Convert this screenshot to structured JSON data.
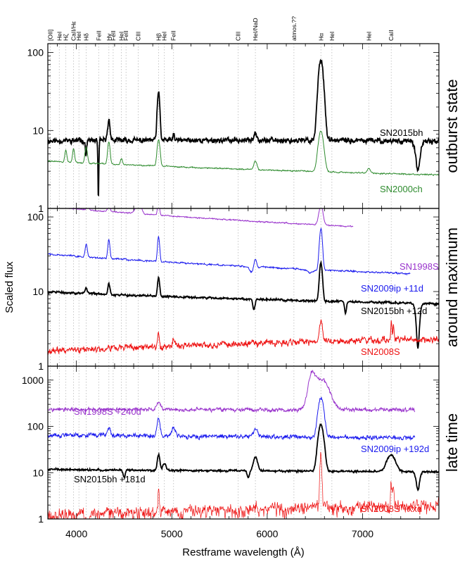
{
  "chart_data": {
    "type": "line",
    "xlabel": "Restframe wavelength (Å)",
    "ylabel": "Scaled flux",
    "xlim": [
      3700,
      7800
    ],
    "x_ticks": [
      4000,
      5000,
      6000,
      7000
    ],
    "x_tick_labels": [
      "4000",
      "5000",
      "6000",
      "7000"
    ],
    "line_markers": [
      {
        "label": "[OII]",
        "x": 3727
      },
      {
        "label": "HeI",
        "x": 3820
      },
      {
        "label": "Hζ",
        "x": 3889
      },
      {
        "label": "CaII/Hε",
        "x": 3970
      },
      {
        "label": "HeI",
        "x": 4026
      },
      {
        "label": "Hδ",
        "x": 4102
      },
      {
        "label": "FeII",
        "x": 4233
      },
      {
        "label": "Hγ",
        "x": 4340
      },
      {
        "label": "FeII",
        "x": 4385
      },
      {
        "label": "HeI",
        "x": 4471
      },
      {
        "label": "FeII",
        "x": 4520
      },
      {
        "label": "CIII",
        "x": 4647
      },
      {
        "label": "Hβ",
        "x": 4861
      },
      {
        "label": "HeI",
        "x": 4922
      },
      {
        "label": "FeII",
        "x": 5018
      },
      {
        "label": "CIII",
        "x": 5696
      },
      {
        "label": "HeI/NaD",
        "x": 5876
      },
      {
        "label": "atmos.??",
        "x": 6280
      },
      {
        "label": "Hα",
        "x": 6563
      },
      {
        "label": "HeI",
        "x": 6678
      },
      {
        "label": "HeI",
        "x": 7065
      },
      {
        "label": "CaII",
        "x": 7300
      }
    ],
    "panels": [
      {
        "title": "outburst state",
        "ylim": [
          1,
          130
        ],
        "yscale": "log",
        "y_ticks": [
          1,
          10,
          100
        ],
        "y_tick_labels": [
          "1",
          "10",
          "100"
        ],
        "series": [
          {
            "name": "SN2015bh",
            "color": "#000000",
            "width": 1.8,
            "scale": 7.5,
            "slope": 0.25,
            "tilt": -0.1,
            "noise": 0.1,
            "seed": 11,
            "lines": [
              [
                4861,
                3.0,
                12
              ],
              [
                6563,
                10.0,
                24
              ],
              [
                4340,
                0.8,
                12
              ],
              [
                5876,
                0.3,
                15
              ],
              [
                5018,
                0.2,
                8
              ]
            ],
            "absorptions": [
              [
                4230,
                0.85,
                6
              ],
              [
                7580,
                0.6,
                25
              ],
              [
                4100,
                0.4,
                6
              ]
            ],
            "label_text": "SN2015bh",
            "label_color": "#000000"
          },
          {
            "name": "SN2000ch",
            "color": "#2e8b2e",
            "width": 1.0,
            "scale": 3.2,
            "slope": -0.55,
            "tilt": 0.0,
            "noise": 0.025,
            "seed": 22,
            "lines": [
              [
                6563,
                2.3,
                26
              ],
              [
                4861,
                1.2,
                14
              ],
              [
                4340,
                0.9,
                12
              ],
              [
                4102,
                0.6,
                12
              ],
              [
                3970,
                0.5,
                10
              ],
              [
                3889,
                0.4,
                10
              ],
              [
                5876,
                0.3,
                15
              ],
              [
                4471,
                0.2,
                10
              ],
              [
                7065,
                0.15,
                15
              ]
            ],
            "absorptions": [],
            "label_text": "SN2000ch",
            "label_color": "#2e8b2e"
          }
        ]
      },
      {
        "title": "around maximum",
        "ylim": [
          1,
          130
        ],
        "yscale": "log",
        "y_ticks": [
          1,
          10,
          100
        ],
        "y_tick_labels": [
          "1",
          "10",
          "100"
        ],
        "series": [
          {
            "name": "SN1998S",
            "color": "#9933cc",
            "width": 1.0,
            "scale": 90,
            "slope": -1.0,
            "tilt": 0.0,
            "noise": 0.025,
            "seed": 33,
            "lines": [
              [
                4650,
                0.45,
                25
              ],
              [
                4861,
                0.5,
                10
              ],
              [
                4340,
                0.2,
                12
              ],
              [
                6563,
                0.8,
                20
              ],
              [
                4120,
                0.15,
                10
              ]
            ],
            "absorptions": [],
            "xmax": 6900,
            "label_text": "SN1998S",
            "label_color": "#9933cc"
          },
          {
            "name": "SN2009ip +11d",
            "color": "#1a1aee",
            "width": 1.0,
            "scale": 22,
            "slope": -0.85,
            "tilt": 0.0,
            "noise": 0.035,
            "seed": 44,
            "lines": [
              [
                4861,
                1.2,
                10
              ],
              [
                4340,
                0.8,
                10
              ],
              [
                4102,
                0.5,
                10
              ],
              [
                6563,
                2.6,
                14
              ],
              [
                5876,
                0.3,
                12
              ]
            ],
            "absorptions": [
              [
                5830,
                0.15,
                20
              ],
              [
                6450,
                0.1,
                30
              ]
            ],
            "xmax": 7500,
            "label_text": "SN2009ip +11d",
            "label_color": "#1a1aee"
          },
          {
            "name": "SN2015bh +12d",
            "color": "#000000",
            "width": 1.8,
            "scale": 8.0,
            "slope": -0.5,
            "tilt": 0.0,
            "noise": 0.04,
            "seed": 55,
            "lines": [
              [
                4861,
                0.8,
                10
              ],
              [
                4340,
                0.4,
                10
              ],
              [
                6563,
                2.3,
                14
              ],
              [
                4102,
                0.2,
                10
              ]
            ],
            "absorptions": [
              [
                5860,
                0.3,
                12
              ],
              [
                7580,
                0.75,
                20
              ],
              [
                6820,
                0.3,
                10
              ]
            ],
            "label_text": "SN2015bh +12d",
            "label_color": "#000000"
          },
          {
            "name": "SN2008S",
            "color": "#ee1111",
            "width": 1.0,
            "scale": 2.0,
            "slope": 0.5,
            "tilt": 0.0,
            "noise": 0.13,
            "seed": 66,
            "lines": [
              [
                6563,
                1.0,
                14
              ],
              [
                4861,
                0.4,
                8
              ],
              [
                7300,
                0.8,
                6
              ],
              [
                7324,
                0.6,
                6
              ],
              [
                5018,
                0.2,
                10
              ]
            ],
            "absorptions": [],
            "label_text": "SN2008S",
            "label_color": "#ee1111"
          }
        ]
      },
      {
        "title": "late time",
        "ylim": [
          1,
          2000
        ],
        "yscale": "log",
        "y_ticks": [
          1,
          10,
          100,
          1000
        ],
        "y_tick_labels": [
          "1",
          "10",
          "100",
          "1000"
        ],
        "series": [
          {
            "name": "SN1998S +240d",
            "color": "#9933cc",
            "width": 1.0,
            "scale": 230,
            "slope": 0.0,
            "tilt": 0.0,
            "noise": 0.12,
            "seed": 77,
            "lines": [
              [
                6563,
                3.5,
                70
              ],
              [
                6460,
                1.8,
                30
              ],
              [
                4861,
                0.4,
                20
              ]
            ],
            "absorptions": [],
            "xmax": 7550,
            "label_text": "SN1998S +240d",
            "label_color": "#9933cc"
          },
          {
            "name": "SN2009ip +192d",
            "color": "#1a1aee",
            "width": 1.0,
            "scale": 60,
            "slope": -0.2,
            "tilt": 0.0,
            "noise": 0.14,
            "seed": 88,
            "lines": [
              [
                6563,
                6.0,
                25
              ],
              [
                4861,
                1.3,
                15
              ],
              [
                5018,
                0.5,
                20
              ],
              [
                4340,
                0.5,
                15
              ],
              [
                5876,
                0.5,
                20
              ]
            ],
            "absorptions": [],
            "xmax": 7550,
            "label_text": "SN2009ip +192d",
            "label_color": "#1a1aee"
          },
          {
            "name": "SN2015bh +181d",
            "color": "#000000",
            "width": 1.8,
            "scale": 11,
            "slope": -0.15,
            "tilt": 0.0,
            "noise": 0.06,
            "seed": 99,
            "lines": [
              [
                6563,
                9.0,
                25
              ],
              [
                4861,
                1.2,
                12
              ],
              [
                5876,
                1.0,
                20
              ],
              [
                7300,
                1.3,
                40
              ],
              [
                4922,
                0.4,
                15
              ]
            ],
            "absorptions": [
              [
                7580,
                0.6,
                20
              ],
              [
                5800,
                0.3,
                12
              ],
              [
                4500,
                0.3,
                12
              ]
            ],
            "label_text": "SN2015bh +181d",
            "label_color": "#000000"
          },
          {
            "name": "SN2008S +xxd",
            "color": "#ee1111",
            "width": 0.7,
            "scale": 1.6,
            "slope": 0.7,
            "tilt": 0.0,
            "noise": 0.45,
            "seed": 111,
            "lines": [
              [
                6563,
                12.0,
                8
              ],
              [
                4861,
                2.0,
                6
              ],
              [
                7300,
                2.5,
                6
              ],
              [
                7324,
                2.0,
                6
              ],
              [
                5876,
                0.5,
                10
              ]
            ],
            "absorptions": [],
            "label_text": "SN2008S +xxd",
            "label_color": "#ee1111"
          }
        ]
      }
    ]
  }
}
